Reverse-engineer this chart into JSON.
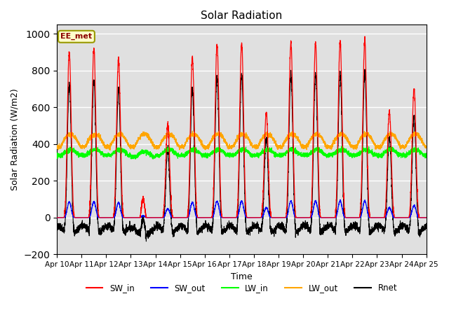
{
  "title": "Solar Radiation",
  "ylabel": "Solar Radiation (W/m2)",
  "xlabel": "Time",
  "ylim": [
    -200,
    1050
  ],
  "yticks": [
    -200,
    0,
    200,
    400,
    600,
    800,
    1000
  ],
  "background_color": "#e0e0e0",
  "legend_labels": [
    "SW_in",
    "SW_out",
    "LW_in",
    "LW_out",
    "Rnet"
  ],
  "legend_colors": [
    "red",
    "blue",
    "lime",
    "orange",
    "black"
  ],
  "annotation_text": "EE_met",
  "annotation_box_color": "#ffffcc",
  "annotation_box_edge": "#999900",
  "start_day": 10,
  "n_days": 15,
  "points_per_day": 288,
  "peak_vals": [
    900,
    920,
    860,
    50,
    500,
    870,
    940,
    950,
    570,
    950,
    950,
    960,
    960,
    580,
    700
  ],
  "night_rnet": -55,
  "lw_in_base": 340,
  "lw_out_base": 390
}
